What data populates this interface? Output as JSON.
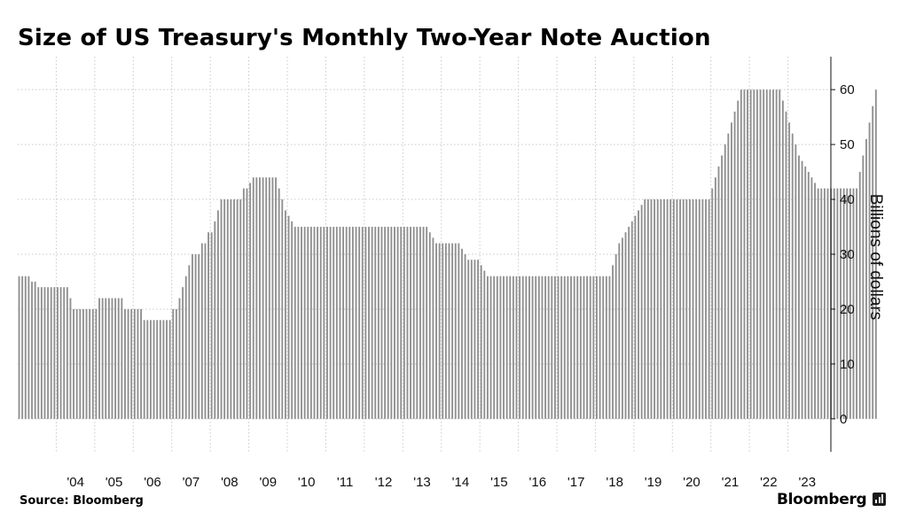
{
  "chart_data": {
    "type": "bar",
    "title": "Size of US Treasury's Monthly Two-Year Note Auction",
    "ylabel": "Billions of dollars",
    "xlabel": "",
    "ylim": [
      -6,
      66
    ],
    "yticks": [
      0,
      10,
      20,
      30,
      40,
      50,
      60
    ],
    "x_tick_labels": [
      "'04",
      "'05",
      "'06",
      "'07",
      "'08",
      "'09",
      "'10",
      "'11",
      "'12",
      "'13",
      "'14",
      "'15",
      "'16",
      "'17",
      "'18",
      "'19",
      "'20",
      "'21",
      "'22",
      "'23"
    ],
    "x_range": [
      "2003-01",
      "2023-12"
    ],
    "grid": true,
    "y_axis_position": "right",
    "bar_color": "#909090",
    "series": [
      {
        "start": "2003-01",
        "values": [
          26,
          26,
          26,
          26,
          25,
          25,
          24,
          24,
          24,
          24,
          24,
          24,
          24,
          24,
          24,
          24,
          22,
          20,
          20,
          20,
          20,
          20,
          20,
          20,
          20,
          22,
          22,
          22,
          22,
          22,
          22,
          22,
          22,
          20,
          20,
          20,
          20,
          20,
          20,
          18,
          18,
          18,
          18,
          18,
          18,
          18,
          18,
          18,
          20,
          20,
          22,
          24,
          26,
          28,
          30,
          30,
          30,
          32,
          32,
          34,
          34,
          36,
          38,
          40,
          40,
          40,
          40,
          40,
          40,
          40,
          42,
          42,
          43,
          44,
          44,
          44,
          44,
          44,
          44,
          44,
          44,
          42,
          40,
          38,
          37,
          36,
          35,
          35,
          35,
          35,
          35,
          35,
          35,
          35,
          35,
          35,
          35,
          35,
          35,
          35,
          35,
          35,
          35,
          35,
          35,
          35,
          35,
          35,
          35,
          35,
          35,
          35,
          35,
          35,
          35,
          35,
          35,
          35,
          35,
          35,
          35,
          35,
          35,
          35,
          35,
          35,
          35,
          35,
          34,
          33,
          32,
          32,
          32,
          32,
          32,
          32,
          32,
          32,
          31,
          30,
          29,
          29,
          29,
          29,
          28,
          27,
          26,
          26,
          26,
          26,
          26,
          26,
          26,
          26,
          26,
          26,
          26,
          26,
          26,
          26,
          26,
          26,
          26,
          26,
          26,
          26,
          26,
          26,
          26,
          26,
          26,
          26,
          26,
          26,
          26,
          26,
          26,
          26,
          26,
          26,
          26,
          26,
          26,
          26,
          26,
          28,
          30,
          32,
          33,
          34,
          35,
          36,
          37,
          38,
          39,
          40,
          40,
          40,
          40,
          40,
          40,
          40,
          40,
          40,
          40,
          40,
          40,
          40,
          40,
          40,
          40,
          40,
          40,
          40,
          40,
          40,
          42,
          44,
          46,
          48,
          50,
          52,
          54,
          56,
          58,
          60,
          60,
          60,
          60,
          60,
          60,
          60,
          60,
          60,
          60,
          60,
          60,
          60,
          58,
          56,
          54,
          52,
          50,
          48,
          47,
          46,
          45,
          44,
          43,
          42,
          42,
          42,
          42,
          42,
          42,
          42,
          42,
          42,
          42,
          42,
          42,
          42,
          45,
          48,
          51,
          54,
          57,
          60
        ]
      }
    ]
  },
  "source": "Source: Bloomberg",
  "brand": "Bloomberg"
}
